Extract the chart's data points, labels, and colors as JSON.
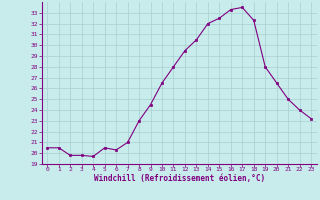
{
  "x": [
    0,
    1,
    2,
    3,
    4,
    5,
    6,
    7,
    8,
    9,
    10,
    11,
    12,
    13,
    14,
    15,
    16,
    17,
    18,
    19,
    20,
    21,
    22,
    23
  ],
  "y": [
    20.5,
    20.5,
    19.8,
    19.8,
    19.7,
    20.5,
    20.3,
    21.0,
    23.0,
    24.5,
    26.5,
    28.0,
    29.5,
    30.5,
    32.0,
    32.5,
    33.3,
    33.5,
    32.3,
    28.0,
    26.5,
    25.0,
    24.0,
    23.2
  ],
  "line_color": "#800080",
  "marker_color": "#800080",
  "bg_color": "#c8ecec",
  "grid_color": "#a8d0d0",
  "xlabel": "Windchill (Refroidissement éolien,°C)",
  "xlabel_color": "#800080",
  "tick_color": "#800080",
  "ylim": [
    19,
    34
  ],
  "xlim": [
    -0.5,
    23.5
  ],
  "yticks": [
    19,
    20,
    21,
    22,
    23,
    24,
    25,
    26,
    27,
    28,
    29,
    30,
    31,
    32,
    33
  ],
  "xticks": [
    0,
    1,
    2,
    3,
    4,
    5,
    6,
    7,
    8,
    9,
    10,
    11,
    12,
    13,
    14,
    15,
    16,
    17,
    18,
    19,
    20,
    21,
    22,
    23
  ]
}
